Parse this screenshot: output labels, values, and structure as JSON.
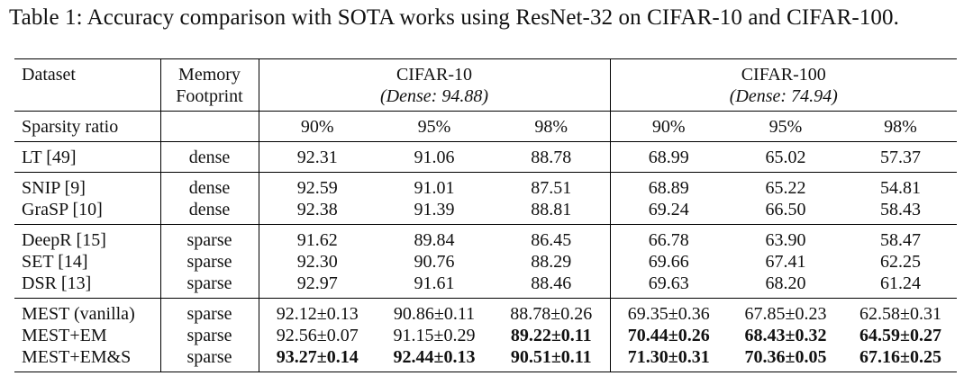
{
  "caption": "Table 1: Accuracy comparison with SOTA works using ResNet-32 on CIFAR-10 and CIFAR-100.",
  "header": {
    "dataset_label": "Dataset",
    "memory_line1": "Memory",
    "memory_line2": "Footprint",
    "cifar10_title": "CIFAR-10",
    "cifar10_dense": "(Dense: 94.88)",
    "cifar100_title": "CIFAR-100",
    "cifar100_dense": "(Dense: 74.94)",
    "sparsity_label": "Sparsity ratio",
    "ratios": [
      "90%",
      "95%",
      "98%",
      "90%",
      "95%",
      "98%"
    ]
  },
  "rows": [
    {
      "name": "LT [49]",
      "memory": "dense",
      "values": [
        "92.31",
        "91.06",
        "88.78",
        "68.99",
        "65.02",
        "57.37"
      ]
    },
    {
      "name": "SNIP [9]",
      "memory": "dense",
      "values": [
        "92.59",
        "91.01",
        "87.51",
        "68.89",
        "65.22",
        "54.81"
      ]
    },
    {
      "name": "GraSP [10]",
      "memory": "dense",
      "values": [
        "92.38",
        "91.39",
        "88.81",
        "69.24",
        "66.50",
        "58.43"
      ]
    },
    {
      "name": "DeepR [15]",
      "memory": "sparse",
      "values": [
        "91.62",
        "89.84",
        "86.45",
        "66.78",
        "63.90",
        "58.47"
      ]
    },
    {
      "name": "SET [14]",
      "memory": "sparse",
      "values": [
        "92.30",
        "90.76",
        "88.29",
        "69.66",
        "67.41",
        "62.25"
      ]
    },
    {
      "name": "DSR [13]",
      "memory": "sparse",
      "values": [
        "92.97",
        "91.61",
        "88.46",
        "69.63",
        "68.20",
        "61.24"
      ]
    },
    {
      "name": "MEST (vanilla)",
      "memory": "sparse",
      "values": [
        "92.12±0.13",
        "90.86±0.11",
        "88.78±0.26",
        "69.35±0.36",
        "67.85±0.23",
        "62.58±0.31"
      ]
    },
    {
      "name": "MEST+EM",
      "memory": "sparse",
      "values": [
        "92.56±0.07",
        "91.15±0.29",
        "89.22±0.11",
        "70.44±0.26",
        "68.43±0.32",
        "64.59±0.27"
      ]
    },
    {
      "name": "MEST+EM&S",
      "memory": "sparse",
      "values": [
        "93.27±0.14",
        "92.44±0.13",
        "90.51±0.11",
        "71.30±0.31",
        "70.36±0.05",
        "67.16±0.25"
      ]
    }
  ]
}
